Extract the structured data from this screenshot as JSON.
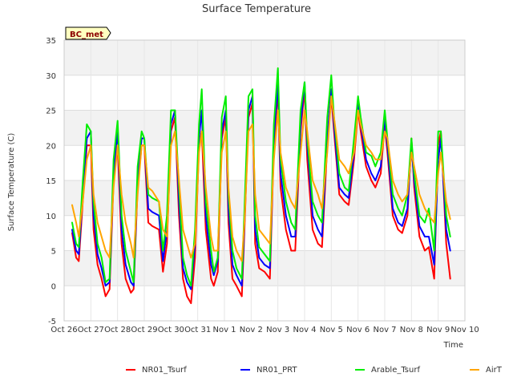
{
  "chart_data": {
    "type": "line",
    "title": "Surface Temperature",
    "site_label": "BC_met",
    "xlabel": "Time",
    "ylabel": "Surface Temperature (C)",
    "ylim": [
      -5,
      35
    ],
    "yticks": [
      -5,
      0,
      5,
      10,
      15,
      20,
      25,
      30,
      35
    ],
    "xlim": [
      0,
      15
    ],
    "xticks": [
      0,
      1,
      2,
      3,
      4,
      5,
      6,
      7,
      8,
      9,
      10,
      11,
      12,
      13,
      14,
      15
    ],
    "xtick_labels": [
      "Oct 26",
      "Oct 27",
      "Oct 28",
      "Oct 29",
      "Oct 30",
      "Oct 31",
      "Nov 1",
      "Nov 2",
      "Nov 3",
      "Nov 4",
      "Nov 5",
      "Nov 6",
      "Nov 7",
      "Nov 8",
      "Nov 9",
      "Nov 10"
    ],
    "legend_position": "bottom-center",
    "x_unit": "days since Oct 26",
    "series": [
      {
        "name": "NR01_Tsurf",
        "color": "#ff0000",
        "x": [
          0.3,
          0.45,
          0.55,
          0.7,
          0.85,
          1.0,
          1.1,
          1.25,
          1.4,
          1.55,
          1.7,
          1.85,
          2.0,
          2.15,
          2.3,
          2.5,
          2.6,
          2.75,
          2.9,
          3.0,
          3.15,
          3.3,
          3.55,
          3.7,
          3.85,
          4.0,
          4.15,
          4.3,
          4.45,
          4.6,
          4.75,
          4.9,
          5.05,
          5.15,
          5.3,
          5.5,
          5.6,
          5.75,
          5.9,
          6.05,
          6.15,
          6.3,
          6.45,
          6.65,
          6.75,
          6.9,
          7.05,
          7.15,
          7.3,
          7.5,
          7.7,
          7.85,
          8.0,
          8.1,
          8.3,
          8.5,
          8.65,
          8.85,
          9.0,
          9.1,
          9.3,
          9.5,
          9.65,
          9.85,
          10.0,
          10.1,
          10.3,
          10.5,
          10.65,
          10.85,
          11.0,
          11.1,
          11.3,
          11.5,
          11.65,
          11.85,
          12.0,
          12.1,
          12.3,
          12.5,
          12.65,
          12.85,
          13.0,
          13.1,
          13.3,
          13.5,
          13.65,
          13.85,
          14.0,
          14.1,
          14.3,
          14.45
        ],
        "y": [
          7.5,
          4.0,
          3.5,
          12,
          20,
          20,
          8,
          3,
          1,
          -1.5,
          -0.5,
          15,
          20,
          6,
          1,
          -1,
          -0.5,
          14,
          20,
          20,
          9,
          8.5,
          8,
          2,
          6,
          22,
          24,
          10,
          1,
          -1.5,
          -2.5,
          4,
          20,
          22,
          8,
          1,
          0,
          2,
          21,
          24,
          9,
          1,
          0,
          -1.5,
          8,
          24,
          26,
          6,
          2.5,
          2,
          1,
          20,
          28,
          14,
          8,
          5,
          5,
          22,
          28,
          18,
          8,
          6,
          5.5,
          20,
          27,
          22,
          13,
          12,
          11.5,
          18,
          25,
          22,
          17,
          15,
          14,
          16,
          23,
          19,
          10,
          8,
          7.5,
          10,
          21,
          14,
          7,
          5,
          5.5,
          1,
          20,
          22,
          6,
          1.0
        ]
      },
      {
        "name": "NR01_PRT",
        "color": "#0000ff",
        "x": [
          0.3,
          0.45,
          0.55,
          0.7,
          0.85,
          1.0,
          1.1,
          1.25,
          1.4,
          1.55,
          1.7,
          1.85,
          2.0,
          2.15,
          2.3,
          2.5,
          2.6,
          2.75,
          2.9,
          3.0,
          3.15,
          3.3,
          3.55,
          3.7,
          3.85,
          4.0,
          4.15,
          4.3,
          4.45,
          4.6,
          4.75,
          4.9,
          5.05,
          5.15,
          5.3,
          5.5,
          5.6,
          5.75,
          5.9,
          6.05,
          6.15,
          6.3,
          6.45,
          6.65,
          6.75,
          6.9,
          7.05,
          7.15,
          7.3,
          7.5,
          7.7,
          7.85,
          8.0,
          8.1,
          8.3,
          8.5,
          8.65,
          8.85,
          9.0,
          9.1,
          9.3,
          9.5,
          9.65,
          9.85,
          10.0,
          10.1,
          10.3,
          10.5,
          10.65,
          10.85,
          11.0,
          11.1,
          11.3,
          11.5,
          11.65,
          11.85,
          12.0,
          12.1,
          12.3,
          12.5,
          12.65,
          12.85,
          13.0,
          13.1,
          13.3,
          13.5,
          13.65,
          13.85,
          14.0,
          14.1,
          14.3,
          14.45
        ],
        "y": [
          8,
          5,
          4.5,
          13,
          21,
          22,
          10,
          4.5,
          2.5,
          0,
          0.5,
          16,
          22,
          8,
          3,
          0.5,
          0,
          15,
          21,
          21,
          11,
          10.5,
          10,
          3.5,
          8,
          23,
          25,
          12,
          2.5,
          0.5,
          -0.5,
          6,
          21,
          25,
          10,
          3,
          1.5,
          3.5,
          22,
          25,
          11,
          3,
          1.5,
          0,
          9,
          25,
          27,
          8,
          4,
          3,
          2.5,
          21,
          29,
          16,
          10,
          7,
          7,
          23,
          29,
          20,
          10,
          8,
          7,
          21,
          28,
          23,
          14,
          13,
          12.5,
          19,
          26,
          23,
          18,
          16,
          15,
          17,
          24,
          20,
          11,
          9,
          8.5,
          11,
          20,
          15,
          8.5,
          7,
          7,
          3,
          18,
          21,
          8,
          5.0
        ]
      },
      {
        "name": "Arable_Tsurf",
        "color": "#00ee00",
        "x": [
          0.3,
          0.45,
          0.55,
          0.7,
          0.85,
          1.0,
          1.1,
          1.25,
          1.4,
          1.55,
          1.7,
          1.85,
          2.0,
          2.15,
          2.3,
          2.5,
          2.6,
          2.75,
          2.9,
          3.0,
          3.15,
          3.3,
          3.55,
          3.7,
          3.85,
          4.0,
          4.15,
          4.3,
          4.45,
          4.6,
          4.75,
          4.9,
          5.05,
          5.15,
          5.3,
          5.5,
          5.6,
          5.75,
          5.9,
          6.05,
          6.15,
          6.3,
          6.45,
          6.65,
          6.75,
          6.9,
          7.05,
          7.15,
          7.3,
          7.5,
          7.7,
          7.85,
          8.0,
          8.1,
          8.3,
          8.5,
          8.65,
          8.85,
          9.0,
          9.1,
          9.3,
          9.5,
          9.65,
          9.85,
          10.0,
          10.1,
          10.3,
          10.5,
          10.65,
          10.85,
          11.0,
          11.1,
          11.3,
          11.5,
          11.65,
          11.85,
          12.0,
          12.1,
          12.3,
          12.5,
          12.65,
          12.85,
          13.0,
          13.1,
          13.3,
          13.5,
          13.65,
          13.85,
          14.0,
          14.1,
          14.3,
          14.45
        ],
        "y": [
          9,
          6,
          5.5,
          15,
          23,
          22,
          12,
          6,
          4,
          0.5,
          1,
          18,
          23.5,
          10,
          5,
          2,
          0.5,
          17,
          22,
          21,
          13,
          12.5,
          12,
          5,
          10,
          25,
          25,
          14,
          4,
          1.5,
          0,
          8,
          23,
          28,
          12,
          5,
          2,
          4,
          24,
          27,
          13,
          5,
          2.5,
          1,
          11,
          27,
          28,
          10,
          5.5,
          4.5,
          3.5,
          23,
          31,
          18,
          12,
          9,
          8,
          25,
          29,
          21,
          12,
          10,
          9,
          24,
          30,
          24,
          16,
          14,
          13.5,
          21,
          27,
          24,
          19,
          18.5,
          17,
          19,
          25,
          21,
          13,
          11,
          10,
          13,
          21,
          16,
          10,
          9,
          11,
          5,
          22,
          22,
          10,
          7.0
        ]
      },
      {
        "name": "AirT",
        "color": "#ffa500",
        "x": [
          0.3,
          0.45,
          0.55,
          0.7,
          0.85,
          1.0,
          1.1,
          1.25,
          1.4,
          1.55,
          1.7,
          1.85,
          2.0,
          2.15,
          2.3,
          2.5,
          2.6,
          2.75,
          2.9,
          3.0,
          3.15,
          3.3,
          3.55,
          3.7,
          3.85,
          4.0,
          4.15,
          4.3,
          4.45,
          4.6,
          4.75,
          4.9,
          5.05,
          5.15,
          5.3,
          5.5,
          5.6,
          5.75,
          5.9,
          6.05,
          6.15,
          6.3,
          6.45,
          6.65,
          6.75,
          6.9,
          7.05,
          7.15,
          7.3,
          7.5,
          7.7,
          7.85,
          8.0,
          8.1,
          8.3,
          8.5,
          8.65,
          8.85,
          9.0,
          9.1,
          9.3,
          9.5,
          9.65,
          9.85,
          10.0,
          10.1,
          10.3,
          10.5,
          10.65,
          10.85,
          11.0,
          11.1,
          11.3,
          11.5,
          11.65,
          11.85,
          12.0,
          12.1,
          12.3,
          12.5,
          12.65,
          12.85,
          13.0,
          13.1,
          13.3,
          13.5,
          13.65,
          13.85,
          14.0,
          14.1,
          14.3,
          14.45
        ],
        "y": [
          11.5,
          9,
          7,
          12,
          18,
          20,
          13,
          9,
          7,
          5,
          4,
          14,
          20,
          13,
          9,
          6,
          4,
          13,
          20,
          20,
          14,
          13.5,
          12,
          8,
          7,
          20,
          22,
          15,
          8,
          6,
          4,
          6,
          19,
          22,
          14,
          7,
          5,
          5,
          19,
          22,
          14,
          7,
          5,
          3.5,
          9,
          22,
          23,
          13,
          8,
          7,
          6,
          18,
          25,
          19,
          14,
          12,
          11,
          19,
          25,
          22,
          15,
          13,
          11,
          19,
          27,
          24,
          18,
          17,
          16,
          19,
          25,
          23,
          20,
          19,
          18,
          18,
          22,
          21,
          15,
          13,
          12,
          13,
          19,
          17,
          13,
          11,
          10,
          9,
          16,
          19,
          12,
          9.5
        ]
      }
    ]
  }
}
